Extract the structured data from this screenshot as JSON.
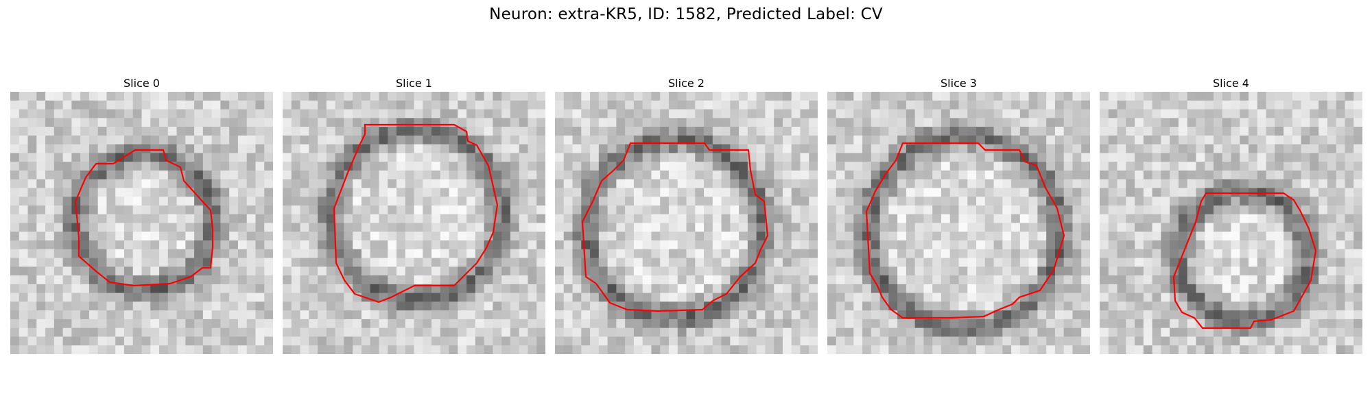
{
  "figure": {
    "title": "Neuron: extra-KR5, ID: 1582, Predicted Label: CV"
  },
  "slices": [
    {
      "label": "Slice 0",
      "contour_color": "#ff0000"
    },
    {
      "label": "Slice 1",
      "contour_color": "#ff0000"
    },
    {
      "label": "Slice 2",
      "contour_color": "#ff0000"
    },
    {
      "label": "Slice 3",
      "contour_color": "#ff0000"
    },
    {
      "label": "Slice 4",
      "contour_color": "#ff0000"
    }
  ]
}
